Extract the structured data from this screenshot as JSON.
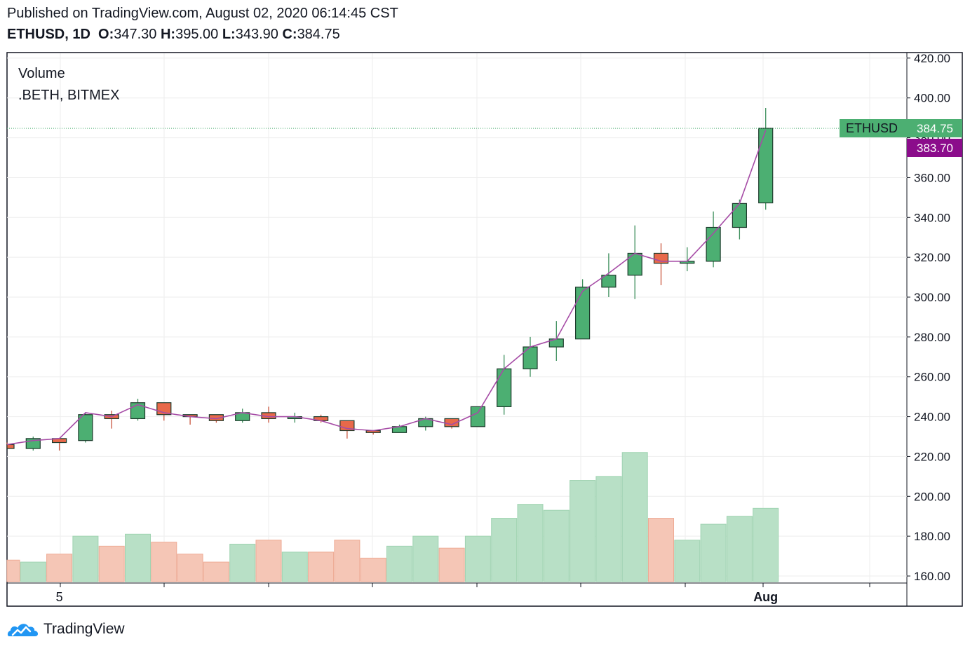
{
  "header": {
    "published": "Published on TradingView.com, August 02, 2020 06:14:45 CST",
    "symbol": "ETHUSD, 1D",
    "o_label": "O:",
    "o_value": "347.30",
    "h_label": "H:",
    "h_value": "395.00",
    "l_label": "L:",
    "l_value": "343.90",
    "c_label": "C:",
    "c_value": "384.75"
  },
  "legend": {
    "line1": "Volume",
    "line2": ".BETH, BITMEX"
  },
  "badges": {
    "ethusd_label": "ETHUSD",
    "ethusd_value": "384.75",
    "beth_value": "383.70"
  },
  "footer": {
    "brand": "TradingView"
  },
  "colors": {
    "up": "#4caf72",
    "down": "#e8694a",
    "outline": "#1d3b2c",
    "vol_up": "#b8e0c6",
    "vol_down": "#f5c6b6",
    "beth_line": "#a64ca6",
    "ethusd_badge": "#4caf72",
    "beth_badge": "#8b0c8b",
    "grid": "#eeeeee"
  },
  "chart_data": {
    "type": "candlestick",
    "symbol": "ETHUSD",
    "interval": "1D",
    "ylim": [
      155,
      420
    ],
    "yticks": [
      "160.00",
      "180.00",
      "200.00",
      "220.00",
      "240.00",
      "260.00",
      "280.00",
      "300.00",
      "320.00",
      "340.00",
      "360.00",
      "380.00",
      "400.00",
      "420.00"
    ],
    "ytick_values": [
      160,
      180,
      200,
      220,
      240,
      260,
      280,
      300,
      320,
      340,
      360,
      380,
      400,
      420
    ],
    "x_labels": [
      {
        "index": 2,
        "text": "5"
      },
      {
        "index": 29,
        "text": "Aug"
      }
    ],
    "candles": [
      {
        "o": 226,
        "h": 227,
        "l": 224,
        "c": 224
      },
      {
        "o": 224,
        "h": 230,
        "l": 223,
        "c": 229
      },
      {
        "o": 229,
        "h": 229,
        "l": 223,
        "c": 227
      },
      {
        "o": 228,
        "h": 242,
        "l": 227,
        "c": 241
      },
      {
        "o": 241,
        "h": 243,
        "l": 234,
        "c": 239
      },
      {
        "o": 239,
        "h": 249,
        "l": 238,
        "c": 247
      },
      {
        "o": 247,
        "h": 247,
        "l": 238,
        "c": 241
      },
      {
        "o": 241,
        "h": 241,
        "l": 236,
        "c": 240
      },
      {
        "o": 241,
        "h": 241,
        "l": 237,
        "c": 238
      },
      {
        "o": 238,
        "h": 244,
        "l": 237,
        "c": 242
      },
      {
        "o": 242,
        "h": 245,
        "l": 237,
        "c": 239
      },
      {
        "o": 239,
        "h": 242,
        "l": 237,
        "c": 240
      },
      {
        "o": 240,
        "h": 241,
        "l": 237,
        "c": 238
      },
      {
        "o": 238,
        "h": 238,
        "l": 229,
        "c": 233
      },
      {
        "o": 233,
        "h": 233,
        "l": 231,
        "c": 232
      },
      {
        "o": 232,
        "h": 236,
        "l": 232,
        "c": 235
      },
      {
        "o": 235,
        "h": 240,
        "l": 233,
        "c": 239
      },
      {
        "o": 239,
        "h": 239,
        "l": 234,
        "c": 235
      },
      {
        "o": 235,
        "h": 245,
        "l": 235,
        "c": 245
      },
      {
        "o": 245,
        "h": 271,
        "l": 241,
        "c": 264
      },
      {
        "o": 264,
        "h": 280,
        "l": 260,
        "c": 275
      },
      {
        "o": 275,
        "h": 288,
        "l": 268,
        "c": 279
      },
      {
        "o": 279,
        "h": 309,
        "l": 279,
        "c": 305
      },
      {
        "o": 305,
        "h": 322,
        "l": 300,
        "c": 311
      },
      {
        "o": 311,
        "h": 336,
        "l": 299,
        "c": 322
      },
      {
        "o": 322,
        "h": 327,
        "l": 306,
        "c": 317
      },
      {
        "o": 317,
        "h": 325,
        "l": 313,
        "c": 318
      },
      {
        "o": 318,
        "h": 343,
        "l": 315,
        "c": 335
      },
      {
        "o": 335,
        "h": 349,
        "l": 329,
        "c": 347
      },
      {
        "o": 347.3,
        "h": 395,
        "l": 343.9,
        "c": 384.75
      }
    ],
    "volume": [
      {
        "v": 168,
        "dir": "down"
      },
      {
        "v": 167,
        "dir": "up"
      },
      {
        "v": 171,
        "dir": "down"
      },
      {
        "v": 180,
        "dir": "up"
      },
      {
        "v": 175,
        "dir": "down"
      },
      {
        "v": 181,
        "dir": "up"
      },
      {
        "v": 177,
        "dir": "down"
      },
      {
        "v": 171,
        "dir": "down"
      },
      {
        "v": 167,
        "dir": "down"
      },
      {
        "v": 176,
        "dir": "up"
      },
      {
        "v": 178,
        "dir": "down"
      },
      {
        "v": 172,
        "dir": "up"
      },
      {
        "v": 172,
        "dir": "down"
      },
      {
        "v": 178,
        "dir": "down"
      },
      {
        "v": 169,
        "dir": "down"
      },
      {
        "v": 175,
        "dir": "up"
      },
      {
        "v": 180,
        "dir": "up"
      },
      {
        "v": 174,
        "dir": "down"
      },
      {
        "v": 180,
        "dir": "up"
      },
      {
        "v": 189,
        "dir": "up"
      },
      {
        "v": 196,
        "dir": "up"
      },
      {
        "v": 193,
        "dir": "up"
      },
      {
        "v": 208,
        "dir": "up"
      },
      {
        "v": 210,
        "dir": "up"
      },
      {
        "v": 222,
        "dir": "up"
      },
      {
        "v": 189,
        "dir": "down"
      },
      {
        "v": 178,
        "dir": "up"
      },
      {
        "v": 186,
        "dir": "up"
      },
      {
        "v": 190,
        "dir": "up"
      },
      {
        "v": 194,
        "dir": "up"
      }
    ],
    "beth_line": [
      226,
      228,
      229,
      242,
      240,
      246,
      242,
      240,
      239,
      242,
      240,
      240,
      238,
      234,
      233,
      235,
      239,
      236,
      242,
      264,
      275,
      279,
      303,
      312,
      322,
      318,
      318,
      332,
      347,
      383.7
    ],
    "last_price_ethusd": 384.75,
    "last_price_beth": 383.7
  }
}
